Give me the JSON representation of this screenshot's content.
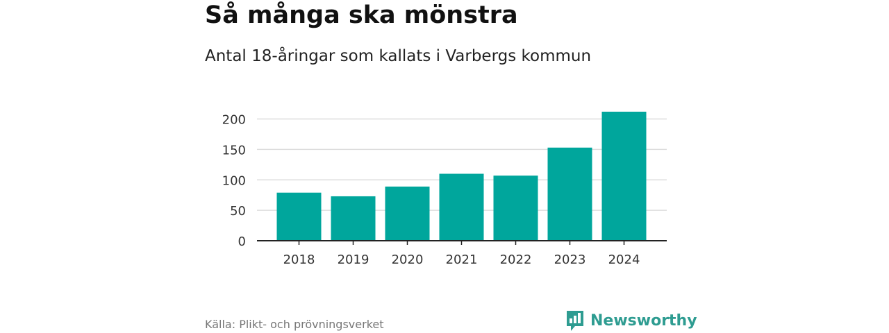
{
  "chart_data": {
    "type": "bar",
    "title": "Så många ska mönstra",
    "subtitle": "Antal 18-åringar som kallats i Varbergs kommun",
    "categories": [
      "2018",
      "2019",
      "2020",
      "2021",
      "2022",
      "2023",
      "2024"
    ],
    "values": [
      79,
      73,
      89,
      110,
      107,
      153,
      212
    ],
    "yticks": [
      "0",
      "50",
      "100",
      "150",
      "200"
    ],
    "ylim": [
      0,
      212
    ],
    "xlabel": "",
    "ylabel": "",
    "grid": true,
    "bar_color": "#00a69c"
  },
  "footer": {
    "source": "Källa: Plikt- och prövningsverket",
    "brand": "Newsworthy",
    "brand_icon": "newsworthy-logo-icon"
  }
}
